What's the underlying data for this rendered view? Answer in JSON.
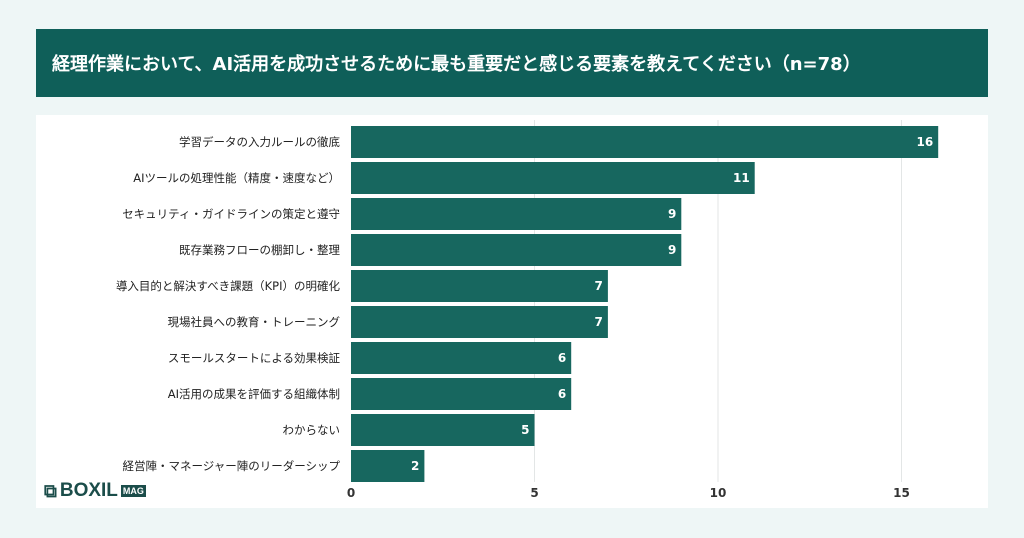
{
  "title": "経理作業において、AI活用を成功させるために最も重要だと感じる要素を教えてください（n=78）",
  "logo": {
    "text": "BOXIL",
    "badge": "MAG"
  },
  "colors": {
    "bar": "#17675f",
    "title_bg": "#0f5f59",
    "background": "#eef6f6"
  },
  "chart_data": {
    "type": "bar",
    "orientation": "horizontal",
    "categories": [
      "学習データの入力ルールの徹底",
      "AIツールの処理性能（精度・速度など）",
      "セキュリティ・ガイドラインの策定と遵守",
      "既存業務フローの棚卸し・整理",
      "導入目的と解決すべき課題（KPI）の明確化",
      "現場社員への教育・トレーニング",
      "スモールスタートによる効果検証",
      "AI活用の成果を評価する組織体制",
      "わからない",
      "経営陣・マネージャー陣のリーダーシップ"
    ],
    "values": [
      16,
      11,
      9,
      9,
      7,
      7,
      6,
      6,
      5,
      2
    ],
    "xlim": [
      0,
      17
    ],
    "xticks": [
      0,
      5,
      10,
      15
    ],
    "grid": true,
    "data_labels": true
  }
}
